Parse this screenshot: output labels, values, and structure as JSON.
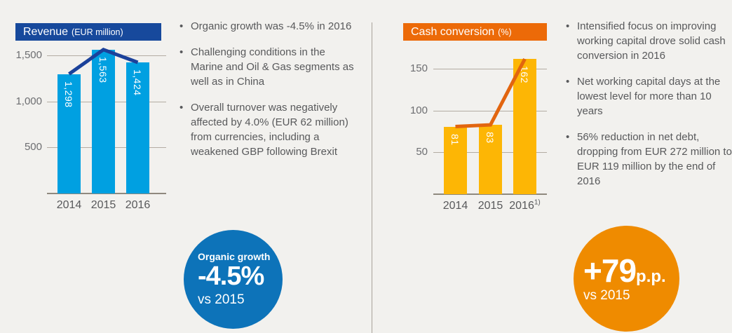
{
  "page": {
    "background": "#f2f1ee",
    "divider_color": "#a8a29a"
  },
  "left_panel": {
    "header": {
      "title": "Revenue",
      "unit": "(EUR million)",
      "bg": "#17499c"
    },
    "bullets": [
      "Organic growth was -4.5% in 2016",
      "Challenging conditions in the Marine and Oil & Gas segments as well as in China",
      "Overall turnover was negatively affected by 4.0% (EUR 62 million) from currencies, including a weakened GBP following Brexit"
    ],
    "badge": {
      "label": "Organic growth",
      "value": "-4.5%",
      "vs": "vs 2015",
      "bg": "#0d73b9"
    }
  },
  "right_panel": {
    "header": {
      "title": "Cash conversion",
      "unit": "(%)",
      "bg": "#ec6a08"
    },
    "bullets": [
      "Intensified focus on improving working capital drove solid cash conversion in 2016",
      "Net working capital days at the lowest level for more than 10 years",
      "56% reduction in net debt, dropping from EUR 272 million to EUR 119 million by the end of 2016"
    ],
    "badge": {
      "value": "+79",
      "unit": "p.p.",
      "vs": "vs 2015",
      "bg": "#ef8b00"
    }
  },
  "chart_data": [
    {
      "type": "bar",
      "title": "Revenue (EUR million)",
      "categories": [
        "2014",
        "2015",
        "2016"
      ],
      "category_sups": [
        "",
        "",
        ""
      ],
      "values": [
        1298,
        1563,
        1424
      ],
      "value_labels": [
        "1,298",
        "1,563",
        "1,424"
      ],
      "yticks": [
        500,
        1000,
        1500
      ],
      "ytick_labels": [
        "500",
        "1,000",
        "1,500"
      ],
      "ylim": [
        0,
        1607
      ],
      "grid": true,
      "legend": "none",
      "bar_color": "#00a0e1",
      "bar_label_color": "#ffffff",
      "overlay_line": {
        "values": [
          1298,
          1563,
          1424
        ],
        "color": "#1b419a"
      }
    },
    {
      "type": "bar",
      "title": "Cash conversion (%)",
      "categories": [
        "2014",
        "2015",
        "2016"
      ],
      "category_sups": [
        "",
        "",
        "1)"
      ],
      "values": [
        81,
        83,
        162
      ],
      "value_labels": [
        "81",
        "83",
        "162"
      ],
      "yticks": [
        50,
        100,
        150
      ],
      "ytick_labels": [
        "50",
        "100",
        "150"
      ],
      "ylim": [
        0,
        178
      ],
      "grid": true,
      "legend": "none",
      "bar_color": "#fdb605",
      "bar_label_color": "#ffffff",
      "overlay_line": {
        "values": [
          81,
          83,
          162
        ],
        "color": "#e2650f"
      }
    }
  ]
}
